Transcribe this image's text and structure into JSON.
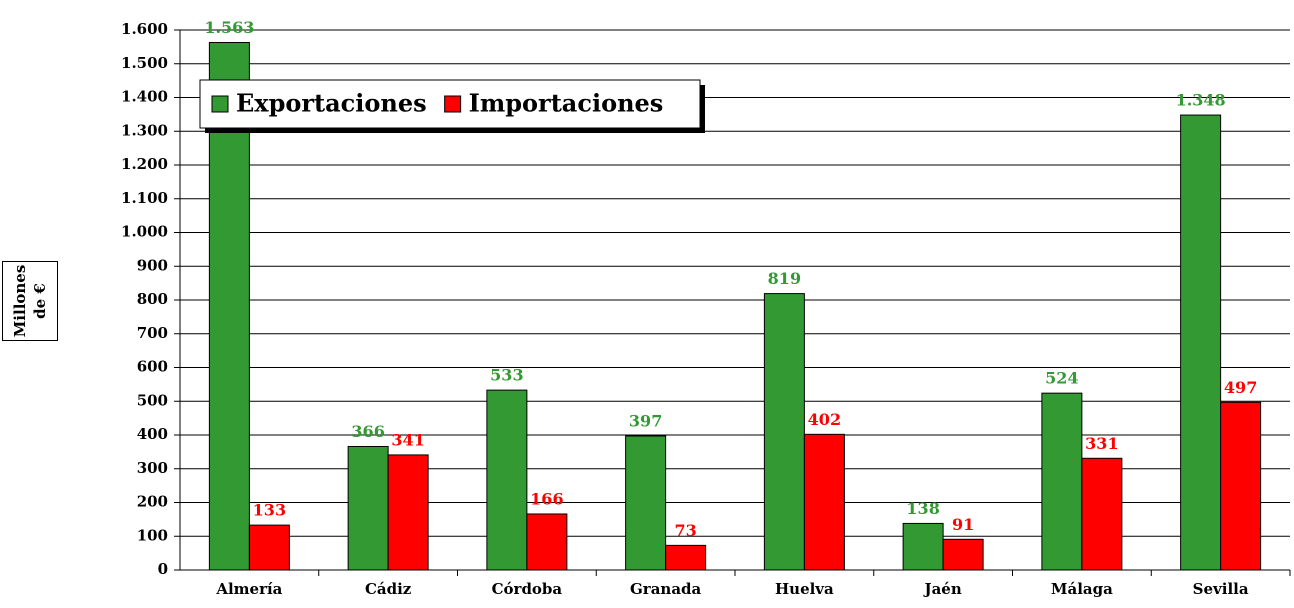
{
  "chart_data": {
    "type": "bar",
    "ylabel": "Millones de €",
    "categories": [
      "Almería",
      "Cádiz",
      "Córdoba",
      "Granada",
      "Huelva",
      "Jaén",
      "Málaga",
      "Sevilla"
    ],
    "series": [
      {
        "name": "Exportaciones",
        "color": "#339933",
        "values": [
          1563,
          366,
          533,
          397,
          819,
          138,
          524,
          1348
        ],
        "value_labels": [
          "1.563",
          "366",
          "533",
          "397",
          "819",
          "138",
          "524",
          "1.348"
        ]
      },
      {
        "name": "Importaciones",
        "color": "#ff0000",
        "values": [
          133,
          341,
          166,
          73,
          402,
          91,
          331,
          497
        ]
      }
    ],
    "ylim": [
      0,
      1600
    ],
    "yticks": [
      0,
      100,
      200,
      300,
      400,
      500,
      600,
      700,
      800,
      900,
      {
        "value": 1000,
        "label": "1.000"
      },
      {
        "value": 1100,
        "label": "1.100"
      },
      {
        "value": 1200,
        "label": "1.200"
      },
      {
        "value": 1300,
        "label": "1.300"
      },
      {
        "value": 1400,
        "label": "1.400"
      },
      {
        "value": 1500,
        "label": "1.500"
      },
      {
        "value": 1600,
        "label": "1.600"
      }
    ],
    "grid": true,
    "legend": "top-left"
  }
}
